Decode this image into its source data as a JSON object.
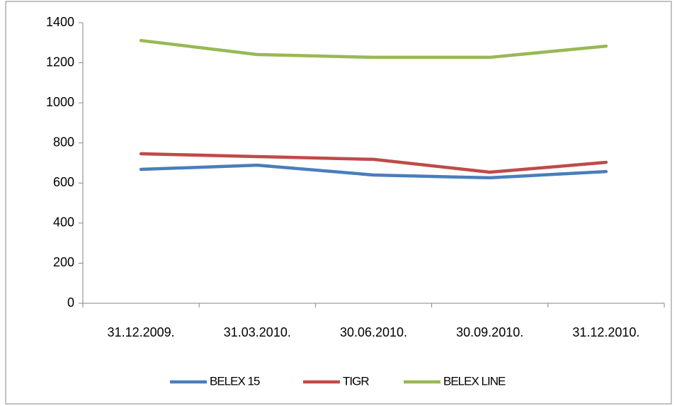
{
  "chart_data": {
    "type": "line",
    "categories": [
      "31.12.2009.",
      "31.03.2010.",
      "30.06.2010.",
      "30.09.2010.",
      "31.12.2010."
    ],
    "series": [
      {
        "name": "BELEX 15",
        "color": "#4a7ebb",
        "values": [
          668,
          689,
          640,
          626,
          657
        ]
      },
      {
        "name": "TIGR",
        "color": "#be4b48",
        "values": [
          746,
          732,
          718,
          654,
          703
        ]
      },
      {
        "name": "BELEX LINE",
        "color": "#98b954",
        "values": [
          1311,
          1241,
          1227,
          1227,
          1283
        ]
      }
    ],
    "ylim": [
      0,
      1400
    ],
    "yticks": [
      0,
      200,
      400,
      600,
      800,
      1000,
      1200,
      1400
    ],
    "grid": false,
    "legend": "bottom"
  }
}
